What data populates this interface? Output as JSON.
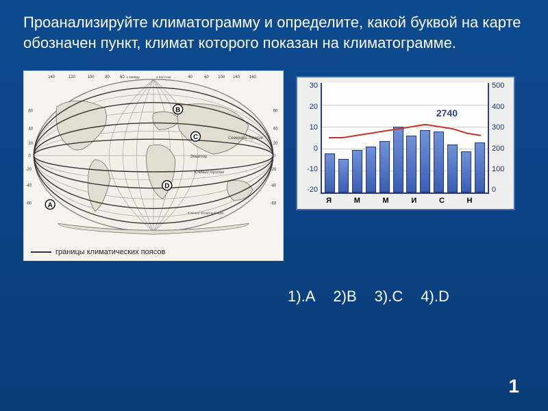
{
  "question_text": "Проанализируйте климатограмму и определите, какой буквой на карте обозначен пункт, климат которого показан на климатограмме.",
  "map": {
    "caption": "границы климатических поясов",
    "points": [
      {
        "label": "A",
        "lon": -165,
        "lat": -55
      },
      {
        "label": "B",
        "lon": 50,
        "lat": 55
      },
      {
        "label": "C",
        "lon": 78,
        "lat": 25
      },
      {
        "label": "D",
        "lon": 30,
        "lat": -30
      }
    ],
    "longitude_ticks": [
      -180,
      -140,
      -120,
      -100,
      -80,
      -60,
      -40,
      -20,
      0,
      20,
      40,
      60,
      80,
      100,
      120,
      140,
      160,
      180
    ],
    "latitude_ticks": [
      -80,
      -60,
      -40,
      -20,
      0,
      20,
      40,
      60,
      80
    ],
    "named_lines": [
      {
        "label": "Северный тропик",
        "lat": 23
      },
      {
        "label": "Экватор",
        "lat": 0
      },
      {
        "label": "Южный тропик",
        "lat": -23
      },
      {
        "label": "Южный полярный круг",
        "lat": -66
      }
    ],
    "land_fill": "#e8e6dd",
    "ocean_fill": "#f5f4ef",
    "stroke": "#555555"
  },
  "climatogram": {
    "type": "bar+line",
    "annual_precip_label": "2740",
    "months": [
      "Я",
      "",
      "М",
      "",
      "М",
      "",
      "И",
      "",
      "С",
      "",
      "Н",
      ""
    ],
    "precip_values": [
      180,
      155,
      195,
      210,
      235,
      300,
      260,
      285,
      280,
      220,
      190,
      230
    ],
    "temp_values": [
      5,
      5,
      6,
      7,
      8,
      9,
      10,
      11,
      10,
      9,
      7,
      6
    ],
    "bar_color_top": "#6f92d9",
    "bar_color_bottom": "#3a5eb4",
    "bar_border": "#23356e",
    "temp_line_color": "#c5332d",
    "temp_line_width": 2,
    "axis_color": "#2d3a85",
    "grid_color": "#c8cedd",
    "plot_bg": "#fdfdfc",
    "panel_bg": "#eef0ee",
    "panel_border": "#4a6bb0",
    "left_axis": {
      "min": -20,
      "max": 30,
      "step": 10,
      "ticks": [
        "30",
        "20",
        "10",
        "0",
        "-10",
        "-20"
      ]
    },
    "right_axis": {
      "min": 0,
      "max": 500,
      "step": 100,
      "ticks": [
        "500",
        "400",
        "300",
        "200",
        "100",
        "0"
      ]
    },
    "label_fontsize": 11
  },
  "answers": {
    "options": [
      {
        "n": "1",
        "letter": "A"
      },
      {
        "n": "2",
        "letter": "B"
      },
      {
        "n": "3",
        "letter": "C"
      },
      {
        "n": "4",
        "letter": "D"
      }
    ]
  },
  "page_number": "1",
  "colors": {
    "slide_bg_top": "#0d4a8f",
    "slide_bg_bottom": "#0a3d7a",
    "text": "#ffffff"
  }
}
